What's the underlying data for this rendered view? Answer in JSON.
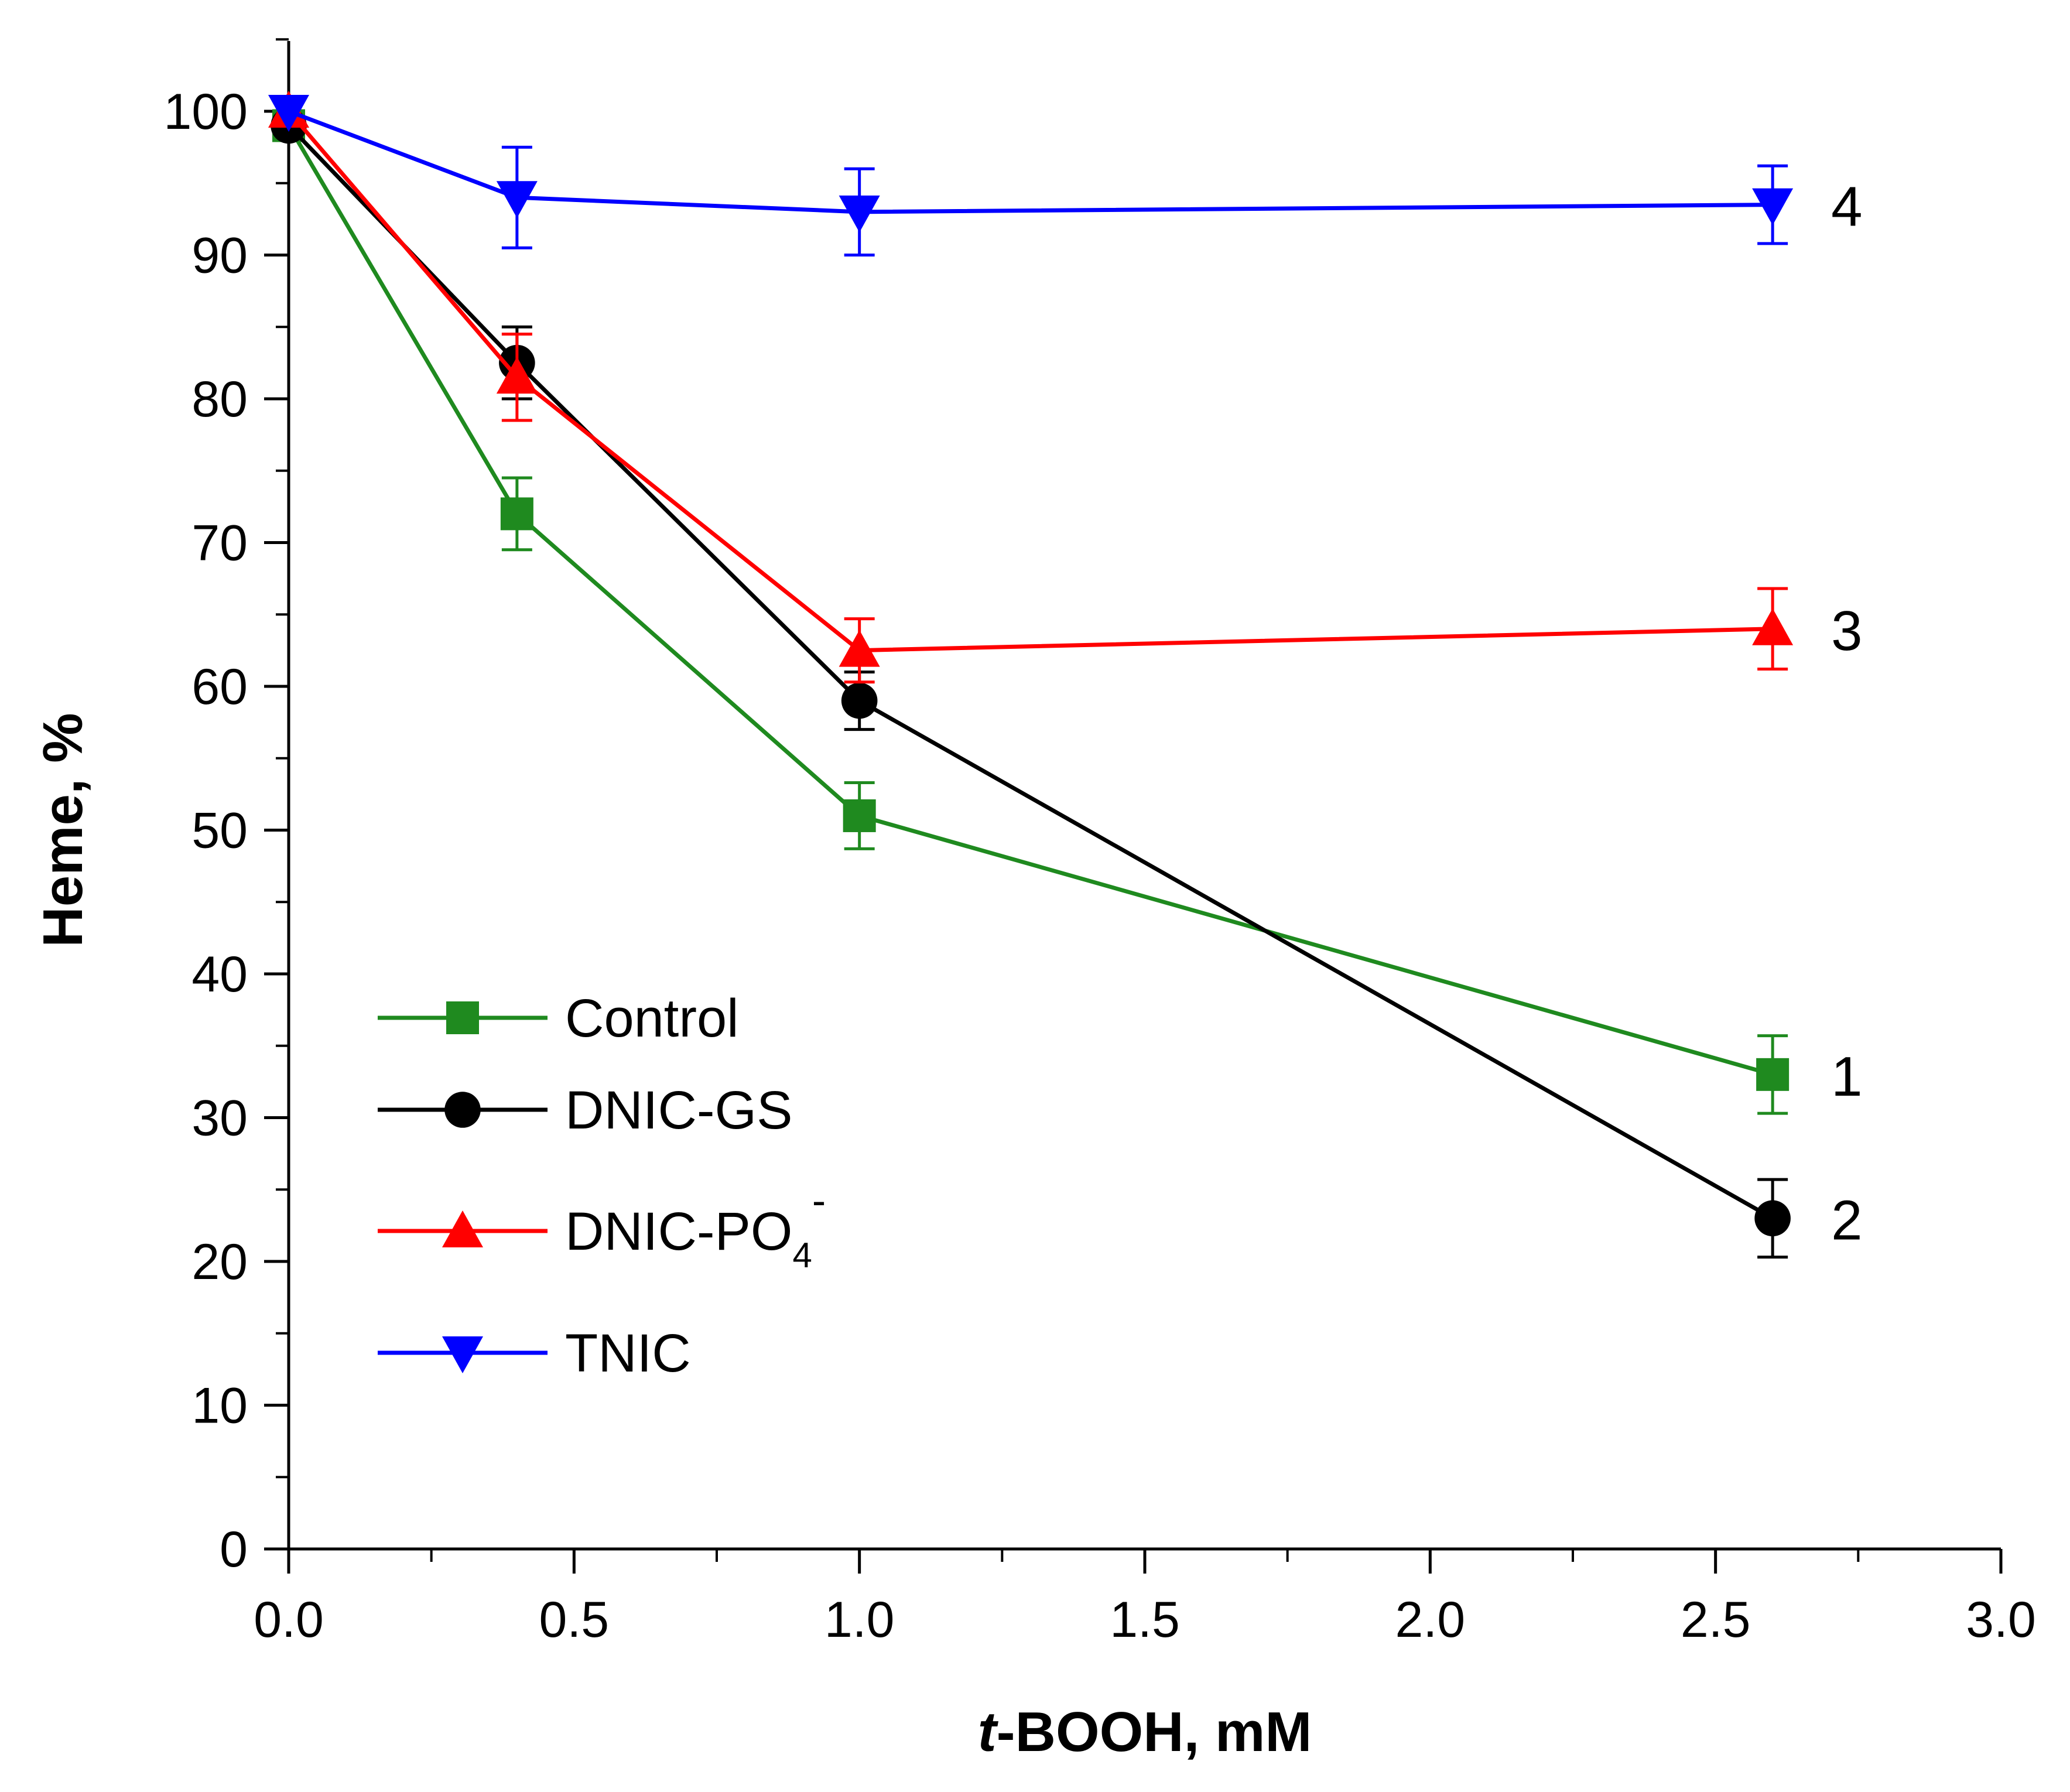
{
  "chart_data": {
    "type": "line",
    "title": "",
    "xlabel_italic": "t",
    "xlabel_rest": "-BOOH, mM",
    "ylabel": "Heme, %",
    "xlim": [
      0.0,
      3.0
    ],
    "ylim": [
      0,
      105
    ],
    "x_ticks": [
      0.0,
      0.5,
      1.0,
      1.5,
      2.0,
      2.5,
      3.0
    ],
    "x_tick_labels": [
      "0.0",
      "0.5",
      "1.0",
      "1.5",
      "2.0",
      "2.5",
      "3.0"
    ],
    "x_minor_step": 0.25,
    "y_ticks": [
      0,
      10,
      20,
      30,
      40,
      50,
      60,
      70,
      80,
      90,
      100
    ],
    "y_tick_labels": [
      "0",
      "10",
      "20",
      "30",
      "40",
      "50",
      "60",
      "70",
      "80",
      "90",
      "100"
    ],
    "y_minor_step": 5,
    "grid": false,
    "legend_position": "lower-left",
    "series": [
      {
        "name": "Control",
        "curve_label": "1",
        "color": "#1f8a1f",
        "marker": "square",
        "x": [
          0.0,
          0.4,
          1.0,
          2.6
        ],
        "y": [
          99,
          72,
          51,
          33
        ],
        "err": [
          0,
          2.5,
          2.3,
          2.7
        ]
      },
      {
        "name": "DNIC-GS",
        "curve_label": "2",
        "color": "#000000",
        "marker": "circle",
        "x": [
          0.0,
          0.4,
          1.0,
          2.6
        ],
        "y": [
          99,
          82.5,
          59,
          23
        ],
        "err": [
          0,
          2.5,
          2.0,
          2.7
        ]
      },
      {
        "name": "DNIC-PO",
        "name_sub": "4",
        "name_sup": "-",
        "curve_label": "3",
        "color": "#ff0000",
        "marker": "triangle-up",
        "x": [
          0.0,
          0.4,
          1.0,
          2.6
        ],
        "y": [
          100,
          81.5,
          62.5,
          64
        ],
        "err": [
          0,
          3.0,
          2.2,
          2.8
        ]
      },
      {
        "name": "TNIC",
        "curve_label": "4",
        "color": "#0000ff",
        "marker": "triangle-down",
        "x": [
          0.0,
          0.4,
          1.0,
          2.6
        ],
        "y": [
          100,
          94,
          93,
          93.5
        ],
        "err": [
          0,
          3.5,
          3.0,
          2.7
        ]
      }
    ]
  }
}
